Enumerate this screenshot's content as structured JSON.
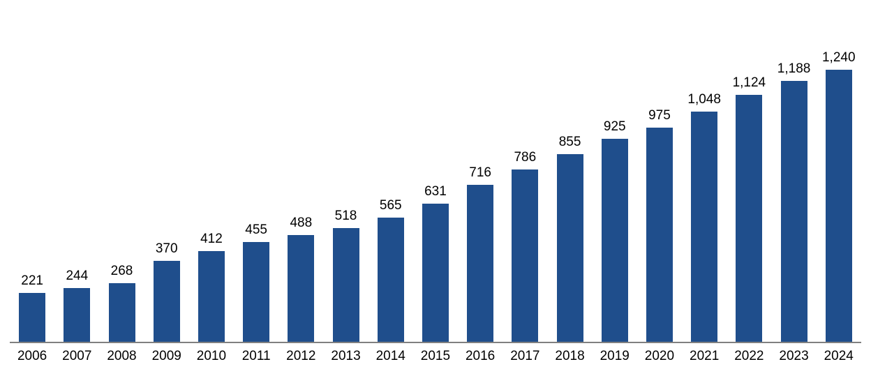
{
  "chart_data": {
    "type": "bar",
    "title": "",
    "xlabel": "",
    "ylabel": "",
    "categories": [
      "2006",
      "2007",
      "2008",
      "2009",
      "2010",
      "2011",
      "2012",
      "2013",
      "2014",
      "2015",
      "2016",
      "2017",
      "2018",
      "2019",
      "2020",
      "2021",
      "2022",
      "2023",
      "2024"
    ],
    "values": [
      221,
      244,
      268,
      370,
      412,
      455,
      488,
      518,
      565,
      631,
      716,
      786,
      855,
      925,
      975,
      1048,
      1124,
      1188,
      1240
    ],
    "value_labels": [
      "221",
      "244",
      "268",
      "370",
      "412",
      "455",
      "488",
      "518",
      "565",
      "631",
      "716",
      "786",
      "855",
      "925",
      "975",
      "1,048",
      "1,124",
      "1,188",
      "1,240"
    ],
    "ylim": [
      0,
      1240
    ],
    "bar_color": "#1f4e8c",
    "axis_line_color": "#808080",
    "grid": false,
    "legend_position": "none",
    "data_labels": "above-bars"
  }
}
